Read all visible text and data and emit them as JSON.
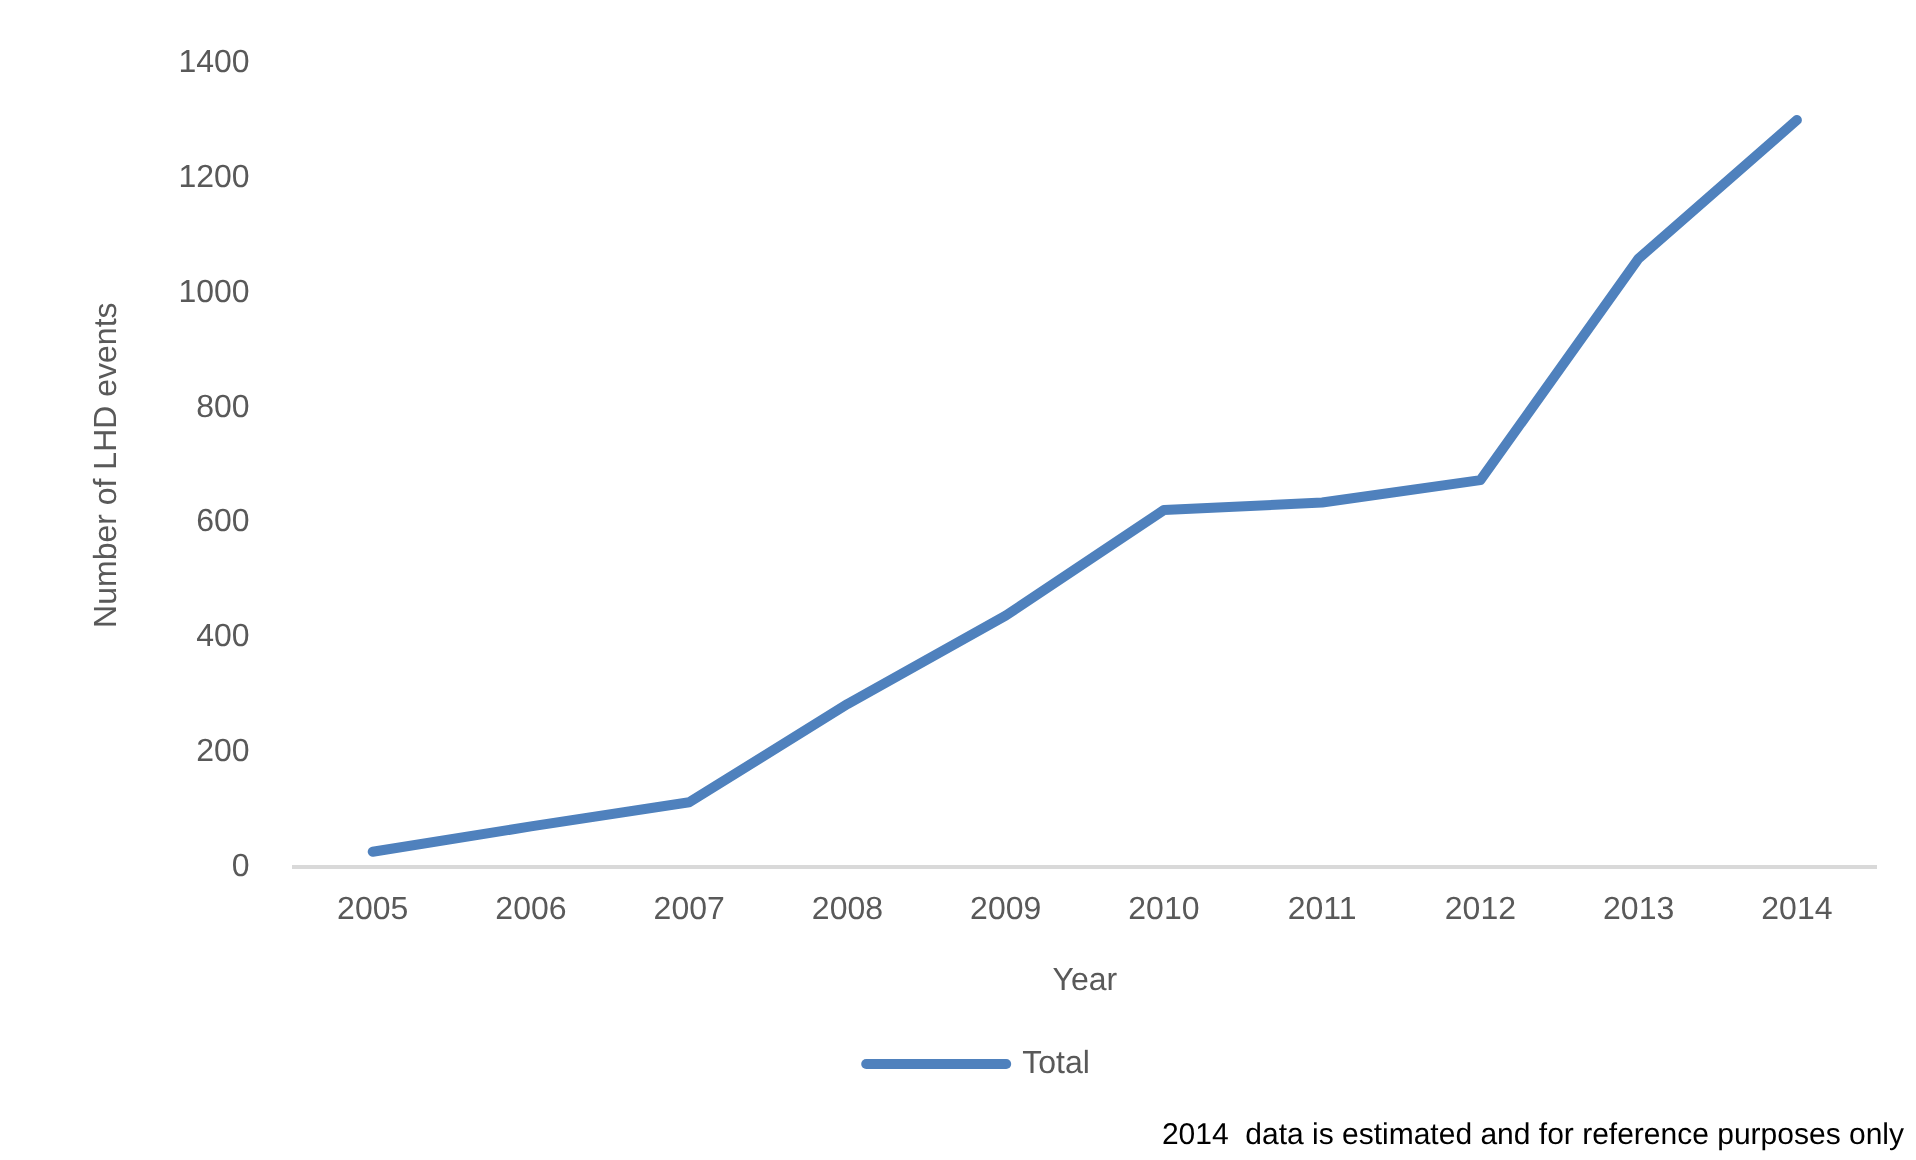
{
  "chart_data": {
    "type": "line",
    "xlabel": "Year",
    "ylabel": "Number of LHD events",
    "categories": [
      "2005",
      "2006",
      "2007",
      "2008",
      "2009",
      "2010",
      "2011",
      "2012",
      "2013",
      "2014"
    ],
    "series": [
      {
        "name": "Total",
        "color": "#4f81bd",
        "values": [
          27,
          71,
          113,
          284,
          438,
          622,
          635,
          674,
          1060,
          1301
        ]
      }
    ],
    "ylim": [
      0,
      1400
    ],
    "yticks": [
      0,
      200,
      400,
      600,
      800,
      1000,
      1200,
      1400
    ],
    "grid": false,
    "legend": "bottom",
    "marker": "none",
    "line_style": "solid",
    "annotations": [
      "2014  data is estimated and for reference purposes only"
    ]
  }
}
